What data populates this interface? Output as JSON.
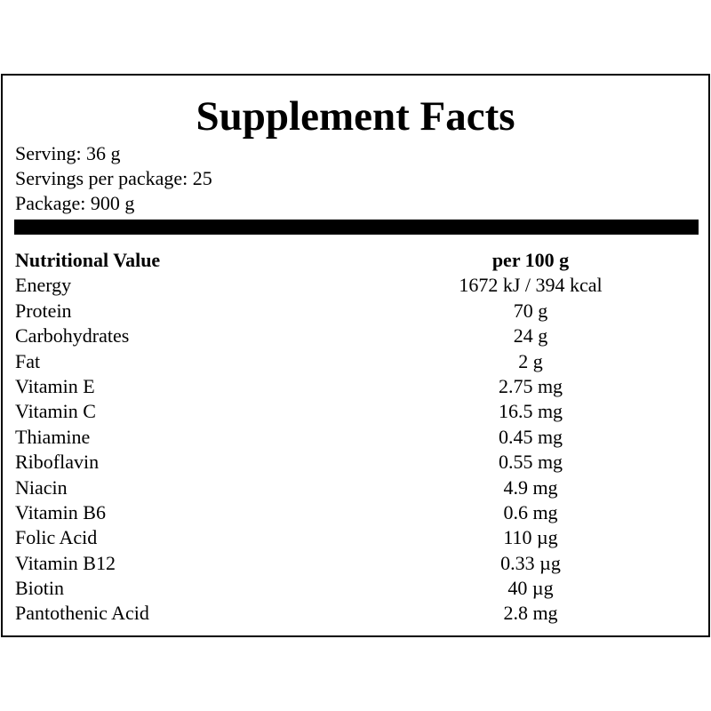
{
  "title": "Supplement Facts",
  "serving": {
    "serving_size": "Serving: 36 g",
    "servings_per_package": "Servings per package: 25",
    "package_size": "Package: 900 g"
  },
  "table": {
    "header": {
      "name": "Nutritional Value",
      "value": "per 100 g"
    },
    "rows": [
      {
        "name": "Energy",
        "value": "1672 kJ / 394 kcal"
      },
      {
        "name": "Protein",
        "value": "70 g"
      },
      {
        "name": "Carbohydrates",
        "value": "24 g"
      },
      {
        "name": "Fat",
        "value": "2 g"
      },
      {
        "name": "Vitamin E",
        "value": "2.75 mg"
      },
      {
        "name": "Vitamin C",
        "value": "16.5 mg"
      },
      {
        "name": "Thiamine",
        "value": "0.45 mg"
      },
      {
        "name": "Riboflavin",
        "value": "0.55 mg"
      },
      {
        "name": "Niacin",
        "value": "4.9 mg"
      },
      {
        "name": "Vitamin B6",
        "value": "0.6 mg"
      },
      {
        "name": "Folic Acid",
        "value": "110 µg"
      },
      {
        "name": "Vitamin B12",
        "value": "0.33 µg"
      },
      {
        "name": "Biotin",
        "value": "40 µg"
      },
      {
        "name": "Pantothenic Acid",
        "value": "2.8 mg"
      }
    ]
  }
}
